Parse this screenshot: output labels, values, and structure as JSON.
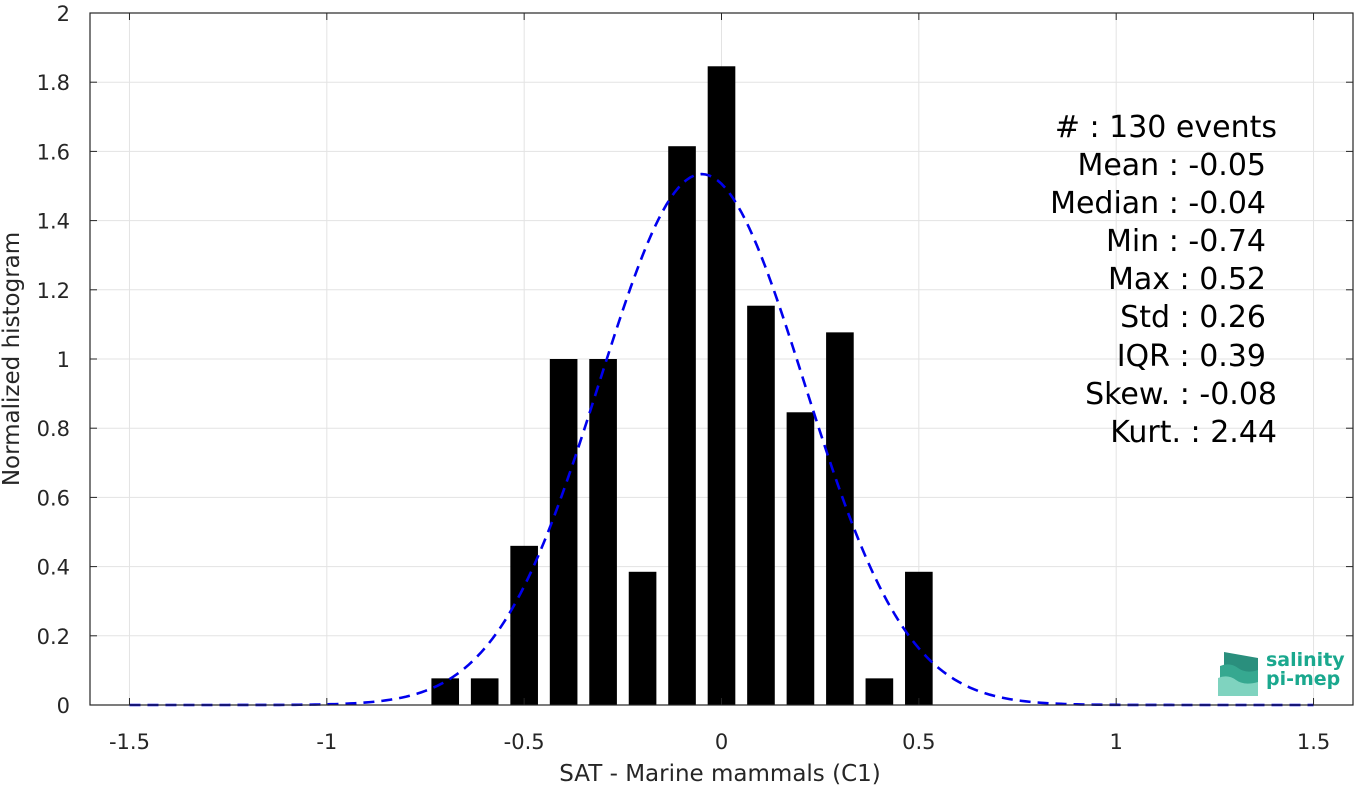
{
  "chart_data": {
    "type": "bar",
    "xlabel": "SAT - Marine mammals (C1)",
    "ylabel": "Normalized histogram",
    "xlim": [
      -1.6,
      1.6
    ],
    "ylim": [
      0,
      2
    ],
    "xticks": [
      -1.5,
      -1,
      -0.5,
      0,
      0.5,
      1,
      1.5
    ],
    "xtick_labels": [
      "-1.5",
      "-1",
      "-0.5",
      "0",
      "0.5",
      "1",
      "1.5"
    ],
    "yticks": [
      0,
      0.2,
      0.4,
      0.6,
      0.8,
      1,
      1.2,
      1.4,
      1.6,
      1.8,
      2
    ],
    "ytick_labels": [
      "0",
      "0.2",
      "0.4",
      "0.6",
      "0.8",
      "1",
      "1.2",
      "1.4",
      "1.6",
      "1.8",
      "2"
    ],
    "grid": true,
    "bar_color": "#000000",
    "bar_width": 0.07,
    "bars": [
      {
        "x": -0.7,
        "y": 0.077
      },
      {
        "x": -0.6,
        "y": 0.077
      },
      {
        "x": -0.5,
        "y": 0.46
      },
      {
        "x": -0.4,
        "y": 1.0
      },
      {
        "x": -0.3,
        "y": 1.0
      },
      {
        "x": -0.2,
        "y": 0.385
      },
      {
        "x": -0.1,
        "y": 1.615
      },
      {
        "x": 0.0,
        "y": 1.846
      },
      {
        "x": 0.1,
        "y": 1.154
      },
      {
        "x": 0.2,
        "y": 0.846
      },
      {
        "x": 0.3,
        "y": 1.077
      },
      {
        "x": 0.4,
        "y": 0.077
      },
      {
        "x": 0.5,
        "y": 0.385
      }
    ],
    "fit": {
      "style": "dashed",
      "color": "#0000ee",
      "mean": -0.05,
      "std": 0.26,
      "x_range": [
        -1.5,
        1.5
      ]
    },
    "annotations": [
      "#  : 130 events",
      "Mean : -0.05",
      "Median : -0.04",
      "Min : -0.74",
      "Max : 0.52",
      "Std : 0.26",
      "IQR : 0.39",
      "Skew. : -0.08",
      "Kurt. : 2.44"
    ]
  },
  "logo": {
    "line1": "salinity",
    "line2": "pi-mep"
  }
}
